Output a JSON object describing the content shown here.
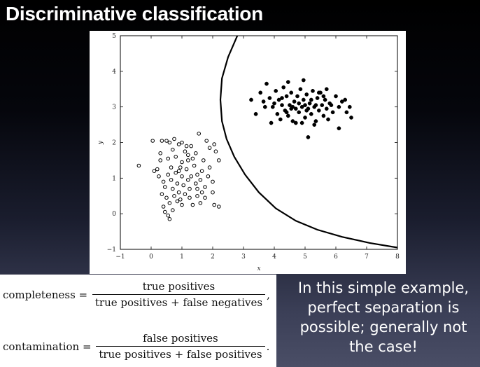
{
  "title": "Discriminative classification",
  "chart_data": {
    "type": "scatter",
    "xlabel": "x",
    "ylabel": "y",
    "xlim": [
      -1,
      8
    ],
    "ylim": [
      -1,
      5
    ],
    "xticks": [
      "−1",
      "0",
      "1",
      "2",
      "3",
      "4",
      "5",
      "6",
      "7",
      "8"
    ],
    "yticks": [
      "−1",
      "0",
      "1",
      "2",
      "3",
      "4",
      "5"
    ],
    "grid": false,
    "series": [
      {
        "marker": "open-circle",
        "color": "#000000",
        "points": [
          [
            -0.4,
            1.35
          ],
          [
            0.05,
            2.05
          ],
          [
            0.2,
            1.25
          ],
          [
            0.3,
            1.5
          ],
          [
            0.35,
            2.05
          ],
          [
            0.5,
            2.05
          ],
          [
            0.6,
            2.0
          ],
          [
            0.7,
            1.8
          ],
          [
            0.75,
            2.1
          ],
          [
            0.8,
            1.6
          ],
          [
            0.9,
            1.95
          ],
          [
            1.0,
            2.0
          ],
          [
            1.1,
            1.75
          ],
          [
            1.2,
            1.5
          ],
          [
            1.3,
            1.9
          ],
          [
            1.45,
            1.7
          ],
          [
            1.55,
            2.25
          ],
          [
            1.7,
            1.5
          ],
          [
            1.8,
            2.05
          ],
          [
            1.9,
            1.85
          ],
          [
            2.05,
            1.95
          ],
          [
            2.1,
            1.75
          ],
          [
            2.2,
            1.5
          ],
          [
            0.1,
            1.2
          ],
          [
            0.25,
            1.05
          ],
          [
            0.4,
            0.9
          ],
          [
            0.45,
            0.75
          ],
          [
            0.55,
            1.1
          ],
          [
            0.65,
            0.95
          ],
          [
            0.7,
            0.7
          ],
          [
            0.8,
            1.15
          ],
          [
            0.85,
            0.85
          ],
          [
            0.95,
            1.3
          ],
          [
            1.0,
            1.05
          ],
          [
            1.05,
            0.8
          ],
          [
            1.15,
            1.25
          ],
          [
            1.2,
            0.95
          ],
          [
            1.25,
            0.7
          ],
          [
            1.3,
            1.05
          ],
          [
            1.4,
            1.35
          ],
          [
            1.45,
            0.85
          ],
          [
            1.5,
            1.1
          ],
          [
            1.6,
            0.95
          ],
          [
            1.65,
            1.2
          ],
          [
            1.75,
            0.75
          ],
          [
            1.85,
            1.05
          ],
          [
            1.9,
            1.3
          ],
          [
            2.0,
            0.6
          ],
          [
            2.0,
            0.9
          ],
          [
            0.35,
            0.55
          ],
          [
            0.5,
            0.45
          ],
          [
            0.6,
            0.3
          ],
          [
            0.75,
            0.5
          ],
          [
            0.85,
            0.35
          ],
          [
            0.9,
            0.6
          ],
          [
            1.0,
            0.25
          ],
          [
            1.1,
            0.55
          ],
          [
            1.25,
            0.45
          ],
          [
            1.35,
            0.25
          ],
          [
            1.5,
            0.5
          ],
          [
            1.6,
            0.3
          ],
          [
            1.65,
            0.6
          ],
          [
            2.05,
            0.25
          ],
          [
            2.2,
            0.2
          ],
          [
            0.4,
            0.2
          ],
          [
            0.45,
            0.05
          ],
          [
            0.55,
            -0.05
          ],
          [
            0.6,
            -0.15
          ],
          [
            0.7,
            0.1
          ],
          [
            1.2,
            1.65
          ],
          [
            1.0,
            1.45
          ],
          [
            0.65,
            1.3
          ],
          [
            0.55,
            1.55
          ],
          [
            0.9,
            1.2
          ],
          [
            1.35,
            1.55
          ],
          [
            1.15,
            1.9
          ],
          [
            0.3,
            1.7
          ],
          [
            1.5,
            0.7
          ],
          [
            1.75,
            0.45
          ],
          [
            0.95,
            0.4
          ]
        ]
      },
      {
        "marker": "filled-circle",
        "color": "#000000",
        "points": [
          [
            3.25,
            3.2
          ],
          [
            3.55,
            3.4
          ],
          [
            3.65,
            3.15
          ],
          [
            3.75,
            3.65
          ],
          [
            3.85,
            3.25
          ],
          [
            3.95,
            3.0
          ],
          [
            4.05,
            3.45
          ],
          [
            4.1,
            2.8
          ],
          [
            4.15,
            3.2
          ],
          [
            4.2,
            2.65
          ],
          [
            4.25,
            3.05
          ],
          [
            4.3,
            3.55
          ],
          [
            4.35,
            2.9
          ],
          [
            4.4,
            3.3
          ],
          [
            4.45,
            2.75
          ],
          [
            4.5,
            3.05
          ],
          [
            4.55,
            3.4
          ],
          [
            4.6,
            2.6
          ],
          [
            4.65,
            3.15
          ],
          [
            4.7,
            2.95
          ],
          [
            4.75,
            3.3
          ],
          [
            4.8,
            2.85
          ],
          [
            4.85,
            3.5
          ],
          [
            4.9,
            3.0
          ],
          [
            4.95,
            3.2
          ],
          [
            5.0,
            2.7
          ],
          [
            5.05,
            3.35
          ],
          [
            5.1,
            2.95
          ],
          [
            5.15,
            3.1
          ],
          [
            5.2,
            2.8
          ],
          [
            5.25,
            3.45
          ],
          [
            5.3,
            3.0
          ],
          [
            5.35,
            2.6
          ],
          [
            5.4,
            3.25
          ],
          [
            5.45,
            2.9
          ],
          [
            5.5,
            3.4
          ],
          [
            5.55,
            3.05
          ],
          [
            5.6,
            2.75
          ],
          [
            5.65,
            3.2
          ],
          [
            5.7,
            2.95
          ],
          [
            5.8,
            3.1
          ],
          [
            5.9,
            2.85
          ],
          [
            6.0,
            3.3
          ],
          [
            6.1,
            3.0
          ],
          [
            6.2,
            3.15
          ],
          [
            6.35,
            2.85
          ],
          [
            6.45,
            3.0
          ],
          [
            3.9,
            2.55
          ],
          [
            4.45,
            3.7
          ],
          [
            4.95,
            3.75
          ],
          [
            5.1,
            2.15
          ],
          [
            5.45,
            3.4
          ],
          [
            5.85,
            3.05
          ],
          [
            6.5,
            2.7
          ],
          [
            6.1,
            2.4
          ],
          [
            4.25,
            3.25
          ],
          [
            4.6,
            3.0
          ],
          [
            4.8,
            3.1
          ],
          [
            5.0,
            3.05
          ],
          [
            5.2,
            3.2
          ],
          [
            5.6,
            3.3
          ],
          [
            4.4,
            2.85
          ],
          [
            4.7,
            2.55
          ],
          [
            5.3,
            2.5
          ],
          [
            3.7,
            3.0
          ],
          [
            4.0,
            3.1
          ],
          [
            5.7,
            3.5
          ],
          [
            6.3,
            3.2
          ],
          [
            4.55,
            2.95
          ],
          [
            5.05,
            2.9
          ],
          [
            5.35,
            3.05
          ],
          [
            3.4,
            2.8
          ],
          [
            5.75,
            2.65
          ],
          [
            4.9,
            2.55
          ]
        ]
      }
    ],
    "boundary_curve": [
      [
        2.8,
        5.0
      ],
      [
        2.5,
        4.4
      ],
      [
        2.3,
        3.8
      ],
      [
        2.25,
        3.2
      ],
      [
        2.3,
        2.6
      ],
      [
        2.45,
        2.1
      ],
      [
        2.7,
        1.6
      ],
      [
        3.05,
        1.1
      ],
      [
        3.5,
        0.6
      ],
      [
        4.05,
        0.15
      ],
      [
        4.7,
        -0.2
      ],
      [
        5.4,
        -0.45
      ],
      [
        6.2,
        -0.65
      ],
      [
        7.1,
        -0.82
      ],
      [
        8.0,
        -0.95
      ]
    ]
  },
  "formulas": {
    "completeness": {
      "lhs": "completeness = ",
      "numerator": "true positives",
      "denominator": "true positives + false negatives",
      "trail": ","
    },
    "contamination": {
      "lhs": "contamination = ",
      "numerator": "false positives",
      "denominator": "true positives + false positives",
      "trail": "."
    }
  },
  "side_text": "In this simple example, perfect separation is possible; generally not the case!"
}
